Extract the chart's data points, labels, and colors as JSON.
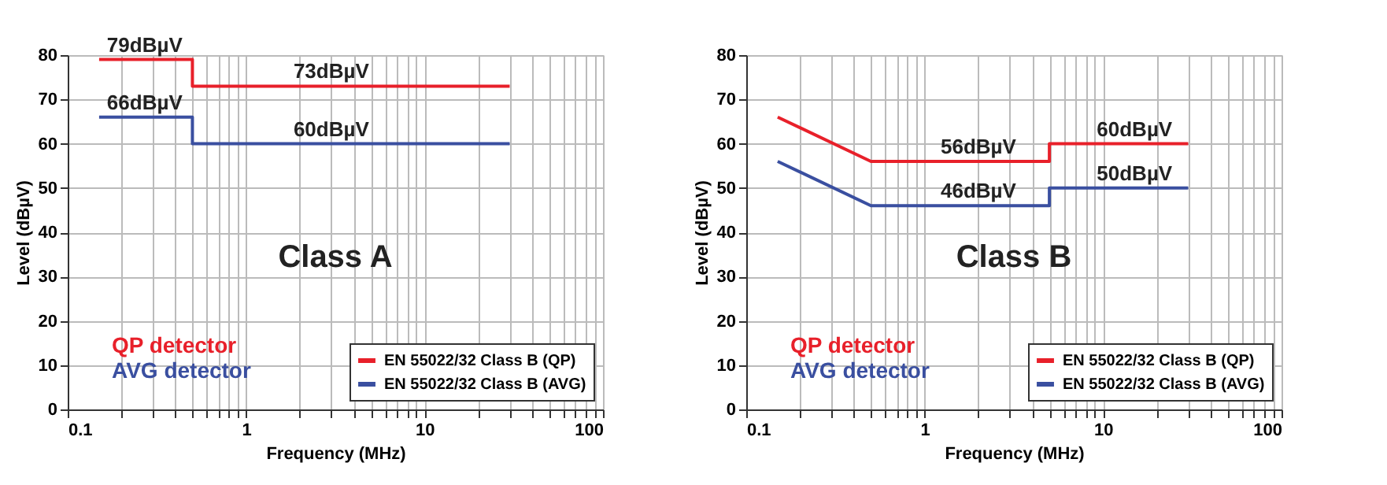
{
  "chart_data": [
    {
      "type": "line",
      "title": "Class A",
      "xlabel": "Frequency (MHz)",
      "ylabel": "Level (dBµV)",
      "log": "x",
      "xlim": [
        0.1,
        100
      ],
      "ylim": [
        0,
        80
      ],
      "xticks": [
        0.1,
        {
          "value": 0.2,
          "label": null
        },
        {
          "value": 0.3,
          "label": null
        },
        {
          "value": 0.4,
          "label": null
        },
        {
          "value": 0.5,
          "label": null
        },
        {
          "value": 0.6,
          "label": null
        },
        {
          "value": 0.7,
          "label": null
        },
        {
          "value": 0.8,
          "label": null
        },
        {
          "value": 0.9,
          "label": null
        },
        1,
        {
          "value": 2,
          "label": null
        },
        {
          "value": 3,
          "label": null
        },
        {
          "value": 4,
          "label": null
        },
        {
          "value": 5,
          "label": null
        },
        {
          "value": 6,
          "label": null
        },
        {
          "value": 7,
          "label": null
        },
        {
          "value": 8,
          "label": null
        },
        {
          "value": 9,
          "label": null
        },
        10,
        {
          "value": 20,
          "label": null
        },
        {
          "value": 30,
          "label": null
        },
        {
          "value": 40,
          "label": null
        },
        {
          "value": 50,
          "label": null
        },
        {
          "value": 60,
          "label": null
        },
        {
          "value": 70,
          "label": null
        },
        {
          "value": 80,
          "label": null
        },
        {
          "value": 90,
          "label": null
        },
        100
      ],
      "yticks": [
        0,
        10,
        20,
        30,
        40,
        50,
        60,
        70,
        80
      ],
      "grid": true,
      "legend": "bottom right",
      "marker": "none",
      "line_style": "solid",
      "series": [
        {
          "name": "EN 55022/32 Class B (QP)",
          "color": "#e8202a",
          "x": [
            0.15,
            0.5,
            0.5,
            30
          ],
          "values": [
            79,
            79,
            73,
            73
          ]
        },
        {
          "name": "EN 55022/32 Class B (AVG)",
          "color": "#3a4fa0",
          "x": [
            0.15,
            0.5,
            0.5,
            30
          ],
          "values": [
            66,
            66,
            60,
            60
          ]
        }
      ],
      "annotations": [
        {
          "text": "79dBµV",
          "x": 0.27,
          "y": 79
        },
        {
          "text": "73dBµV",
          "x": 3,
          "y": 73
        },
        {
          "text": "66dBµV",
          "x": 0.27,
          "y": 66
        },
        {
          "text": "60dBµV",
          "x": 3,
          "y": 60
        },
        "QP detector",
        "AVG detector"
      ]
    },
    {
      "type": "line",
      "title": "Class B",
      "xlabel": "Frequency (MHz)",
      "ylabel": "Level (dBµV)",
      "log": "x",
      "xlim": [
        0.1,
        100
      ],
      "ylim": [
        0,
        80
      ],
      "xticks": [
        0.1,
        {
          "value": 0.2,
          "label": null
        },
        {
          "value": 0.3,
          "label": null
        },
        {
          "value": 0.4,
          "label": null
        },
        {
          "value": 0.5,
          "label": null
        },
        {
          "value": 0.6,
          "label": null
        },
        {
          "value": 0.7,
          "label": null
        },
        {
          "value": 0.8,
          "label": null
        },
        {
          "value": 0.9,
          "label": null
        },
        1,
        {
          "value": 2,
          "label": null
        },
        {
          "value": 3,
          "label": null
        },
        {
          "value": 4,
          "label": null
        },
        {
          "value": 5,
          "label": null
        },
        {
          "value": 6,
          "label": null
        },
        {
          "value": 7,
          "label": null
        },
        {
          "value": 8,
          "label": null
        },
        {
          "value": 9,
          "label": null
        },
        10,
        {
          "value": 20,
          "label": null
        },
        {
          "value": 30,
          "label": null
        },
        {
          "value": 40,
          "label": null
        },
        {
          "value": 50,
          "label": null
        },
        {
          "value": 60,
          "label": null
        },
        {
          "value": 70,
          "label": null
        },
        {
          "value": 80,
          "label": null
        },
        {
          "value": 90,
          "label": null
        },
        100
      ],
      "yticks": [
        0,
        10,
        20,
        30,
        40,
        50,
        60,
        70,
        80
      ],
      "grid": true,
      "legend": "bottom right",
      "marker": "none",
      "line_style": "solid",
      "series": [
        {
          "name": "EN 55022/32 Class B (QP)",
          "color": "#e8202a",
          "x": [
            0.15,
            0.5,
            5,
            5,
            30
          ],
          "values": [
            66,
            56,
            56,
            60,
            60
          ]
        },
        {
          "name": "EN 55022/32 Class B (AVG)",
          "color": "#3a4fa0",
          "x": [
            0.15,
            0.5,
            5,
            5,
            30
          ],
          "values": [
            56,
            46,
            46,
            50,
            50
          ]
        }
      ],
      "annotations": [
        {
          "text": "56dBµV",
          "x": 2,
          "y": 56
        },
        {
          "text": "60dBµV",
          "x": 15,
          "y": 60
        },
        {
          "text": "46dBµV",
          "x": 2,
          "y": 46
        },
        {
          "text": "50dBµV",
          "x": 15,
          "y": 50
        },
        "QP detector",
        "AVG detector"
      ]
    }
  ]
}
